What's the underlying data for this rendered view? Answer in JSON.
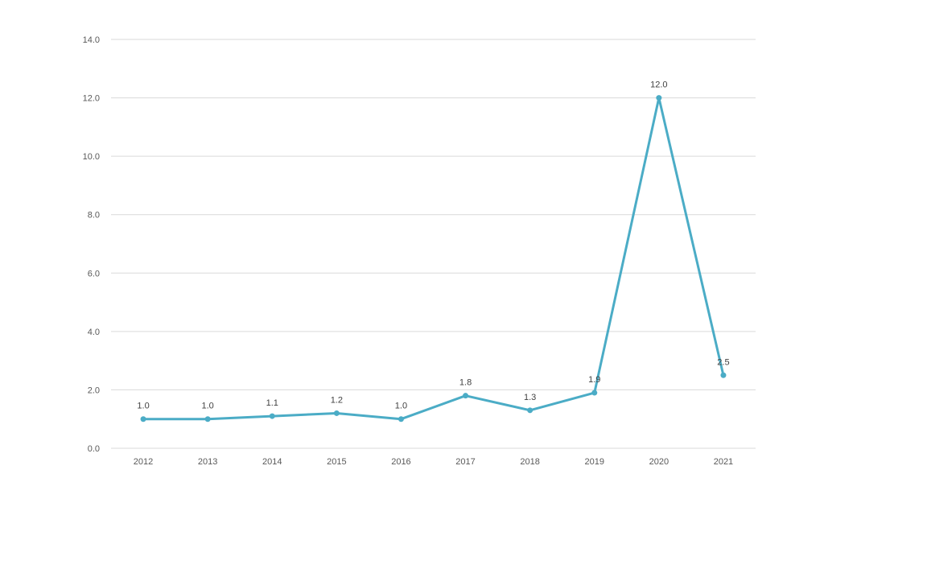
{
  "chart_data": {
    "type": "line",
    "title": "",
    "xlabel": "",
    "ylabel": "",
    "categories": [
      "2012",
      "2013",
      "2014",
      "2015",
      "2016",
      "2017",
      "2018",
      "2019",
      "2020",
      "2021"
    ],
    "series": [
      {
        "values": [
          1.0,
          1.0,
          1.1,
          1.2,
          1.0,
          1.8,
          1.3,
          1.9,
          12.0,
          2.5
        ],
        "labels": [
          "1.0",
          "1.0",
          "1.1",
          "1.2",
          "1.0",
          "1.8",
          "1.3",
          "1.9",
          "12.0",
          "2.5"
        ],
        "color": "#4bacc6"
      }
    ],
    "ylim": [
      0,
      14
    ],
    "yticks": [
      "0.0",
      "2.0",
      "4.0",
      "6.0",
      "8.0",
      "10.0",
      "12.0",
      "14.0"
    ],
    "grid": true,
    "gridColor": "#d9d9d9",
    "legend": "none"
  }
}
